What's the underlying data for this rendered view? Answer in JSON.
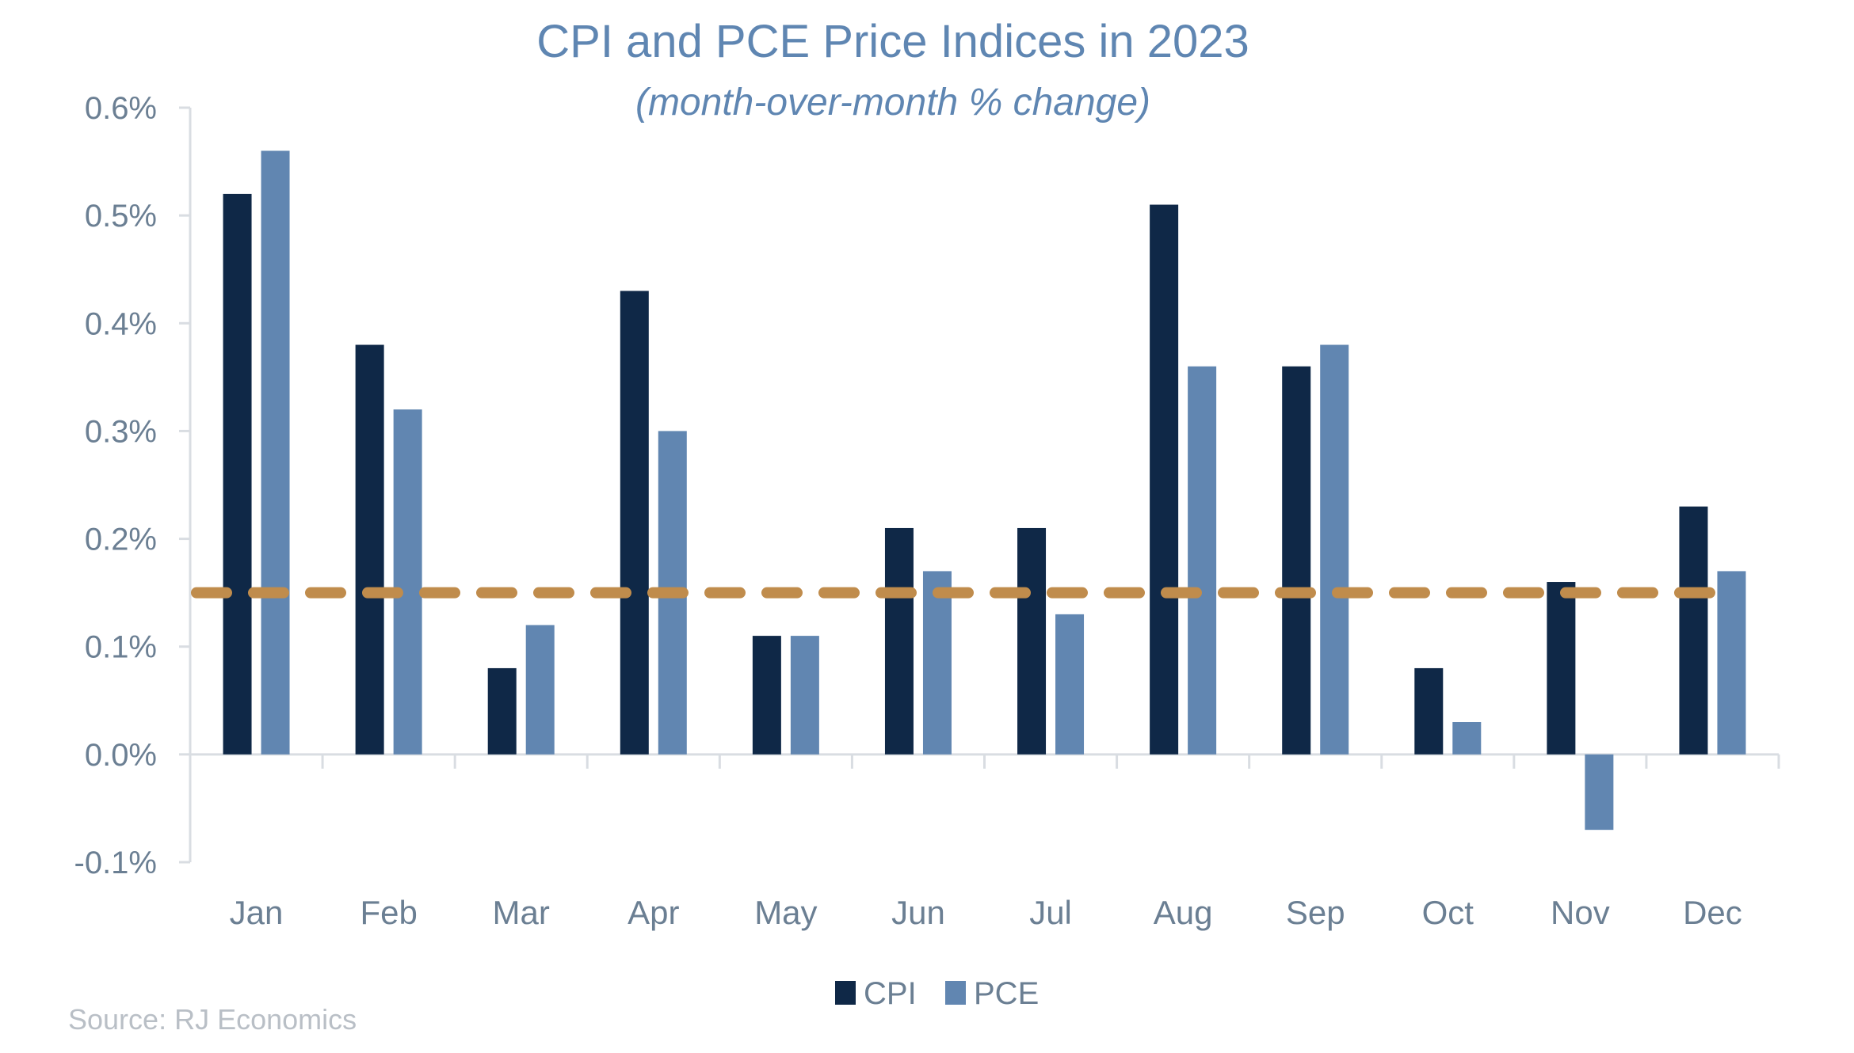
{
  "chart_data": {
    "type": "bar",
    "title": "CPI and PCE Price Indices in 2023",
    "subtitle": "(month-over-month % change)",
    "xlabel": "",
    "ylabel": "",
    "categories": [
      "Jan",
      "Feb",
      "Mar",
      "Apr",
      "May",
      "Jun",
      "Jul",
      "Aug",
      "Sep",
      "Oct",
      "Nov",
      "Dec"
    ],
    "series": [
      {
        "name": "CPI",
        "color": "#0f2847",
        "values": [
          0.52,
          0.38,
          0.08,
          0.43,
          0.11,
          0.21,
          0.21,
          0.51,
          0.36,
          0.08,
          0.16,
          0.23
        ]
      },
      {
        "name": "PCE",
        "color": "#6186b1",
        "values": [
          0.56,
          0.32,
          0.12,
          0.3,
          0.11,
          0.17,
          0.13,
          0.36,
          0.38,
          0.03,
          -0.07,
          0.17
        ]
      }
    ],
    "reference_line": {
      "value": 0.15,
      "style": "dashed",
      "color": "#c08c4c"
    },
    "ylim": [
      -0.1,
      0.6
    ],
    "yticks": [
      -0.1,
      0.0,
      0.1,
      0.2,
      0.3,
      0.4,
      0.5,
      0.6
    ],
    "ytick_labels": [
      "-0.1%",
      "0.0%",
      "0.1%",
      "0.2%",
      "0.3%",
      "0.4%",
      "0.5%",
      "0.6%"
    ],
    "grid": false,
    "legend": {
      "position": "bottom-center",
      "entries": [
        "CPI",
        "PCE"
      ]
    },
    "source": "Source: RJ Economics"
  }
}
